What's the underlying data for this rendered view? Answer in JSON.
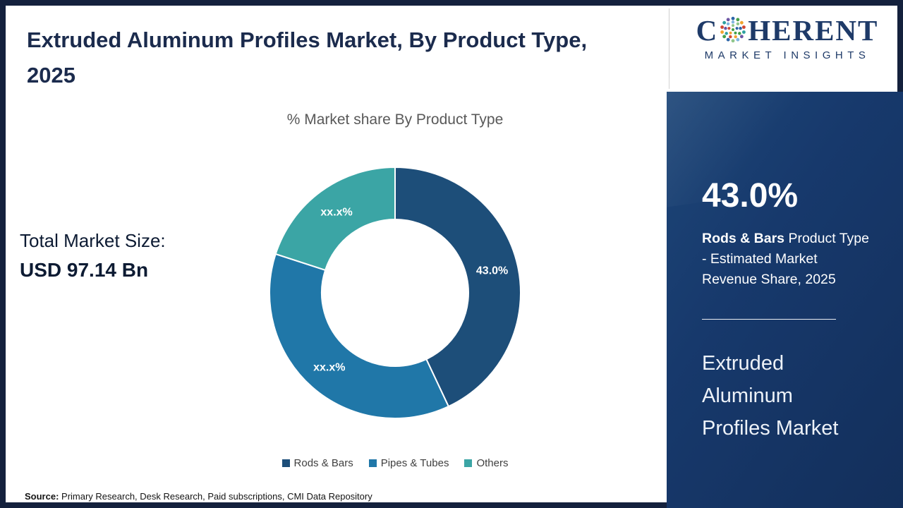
{
  "header": {
    "title": "Extruded Aluminum Profiles Market, By Product Type, 2025",
    "logo": {
      "brand_prefix": "C",
      "brand_suffix": "HERENT",
      "tagline": "MARKET INSIGHTS",
      "brand_color": "#1E3A68"
    }
  },
  "left_panel": {
    "label": "Total Market Size:",
    "value": "USD 97.14 Bn"
  },
  "chart_data": {
    "type": "pie",
    "donut": true,
    "title": "% Market share By Product Type",
    "categories": [
      "Rods & Bars",
      "Pipes & Tubes",
      "Others"
    ],
    "values": [
      43.0,
      37.0,
      20.0
    ],
    "display_labels": [
      "43.0%",
      "xx.x%",
      "xx.x%"
    ],
    "colors": [
      "#1D4E79",
      "#2077A8",
      "#3BA5A5"
    ],
    "start_angle_deg": 0,
    "direction": "clockwise",
    "legend_position": "bottom"
  },
  "side_panel": {
    "stat_value": "43.0%",
    "stat_bold": "Rods & Bars",
    "stat_rest": " Product Type - Estimated Market Revenue Share, 2025",
    "panel_title": "Extruded Aluminum Profiles Market",
    "background_color": "#17396C"
  },
  "footer": {
    "source_label": "Source:",
    "source_text": " Primary Research, Desk Research, Paid subscriptions, CMI Data Repository"
  }
}
